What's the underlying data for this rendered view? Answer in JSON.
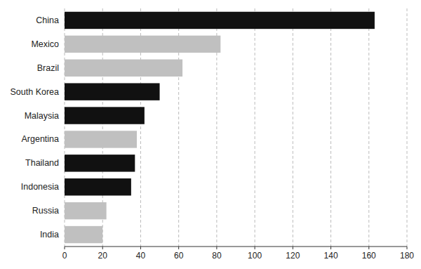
{
  "chart_data": {
    "type": "bar",
    "orientation": "horizontal",
    "categories": [
      "China",
      "Mexico",
      "Brazil",
      "South Korea",
      "Malaysia",
      "Argentina",
      "Thailand",
      "Indonesia",
      "Russia",
      "India"
    ],
    "values": [
      163,
      82,
      62,
      50,
      42,
      38,
      37,
      35,
      22,
      20
    ],
    "colors": [
      "#111111",
      "#c0c0c0",
      "#c0c0c0",
      "#111111",
      "#111111",
      "#c0c0c0",
      "#111111",
      "#111111",
      "#c0c0c0",
      "#c0c0c0"
    ],
    "xlim": [
      0,
      180
    ],
    "xticks": [
      0,
      20,
      40,
      60,
      80,
      100,
      120,
      140,
      160,
      180
    ],
    "grid": true
  }
}
